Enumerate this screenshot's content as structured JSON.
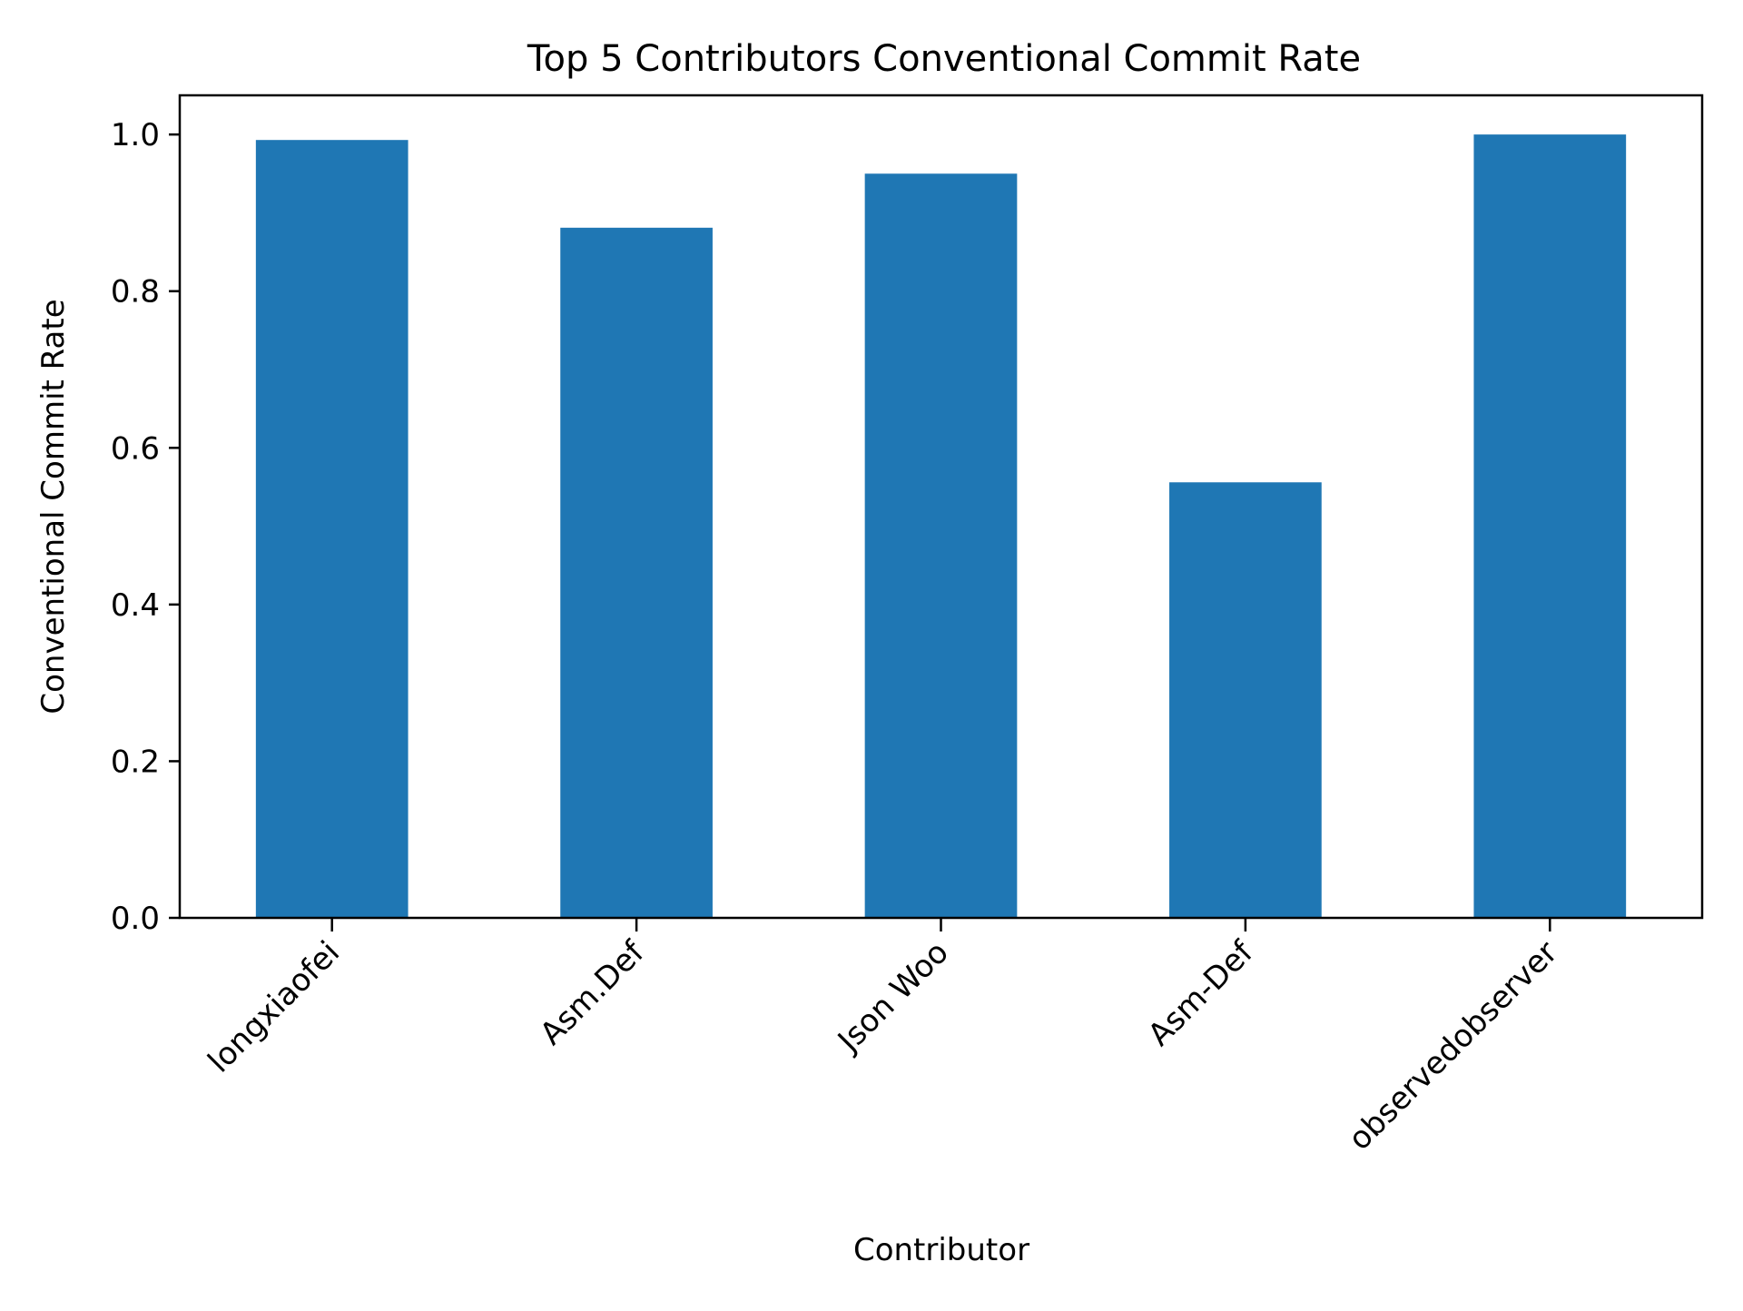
{
  "chart_data": {
    "type": "bar",
    "title": "Top 5 Contributors Conventional Commit Rate",
    "xlabel": "Contributor",
    "ylabel": "Conventional Commit Rate",
    "categories": [
      "longxiaofei",
      "Asm.Def",
      "Json Woo",
      "Asm-Def",
      "observedobserver"
    ],
    "values": [
      0.993,
      0.881,
      0.95,
      0.556,
      1.0
    ],
    "ylim": [
      0,
      1.05
    ],
    "yticks": [
      0.0,
      0.2,
      0.4,
      0.6,
      0.8,
      1.0
    ],
    "ytick_labels": [
      "0.0",
      "0.2",
      "0.4",
      "0.6",
      "0.8",
      "1.0"
    ],
    "xtick_rotation": 45,
    "bar_color": "#1f77b4",
    "grid": false,
    "legend": null
  }
}
